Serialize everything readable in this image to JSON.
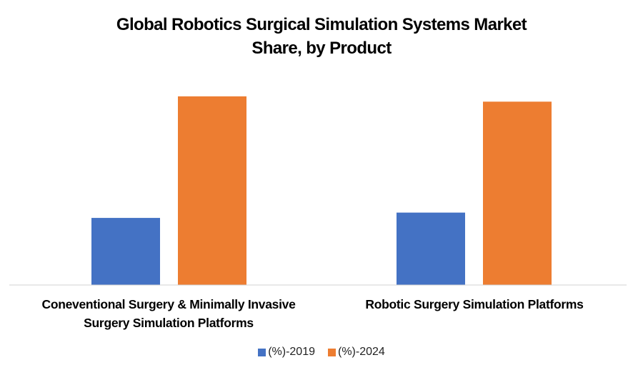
{
  "chart_data": {
    "type": "bar",
    "title_lines": [
      "Global Robotics Surgical Simulation Systems Market",
      "Share, by Product"
    ],
    "categories": [
      [
        "Coneventional Surgery & Minimally Invasive",
        "Surgery Simulation Platforms"
      ],
      [
        "Robotic Surgery Simulation Platforms"
      ]
    ],
    "series": [
      {
        "name": "(%)-2019",
        "color": "#4472C4",
        "values": [
          10.1,
          10.9
        ]
      },
      {
        "name": "(%)-2024",
        "color": "#ED7D31",
        "values": [
          28.4,
          27.6
        ]
      }
    ],
    "xlabel": "",
    "ylabel": "",
    "ylim": [
      0,
      30
    ],
    "y_axis_visible": false,
    "grid": false,
    "legend_position": "bottom"
  }
}
